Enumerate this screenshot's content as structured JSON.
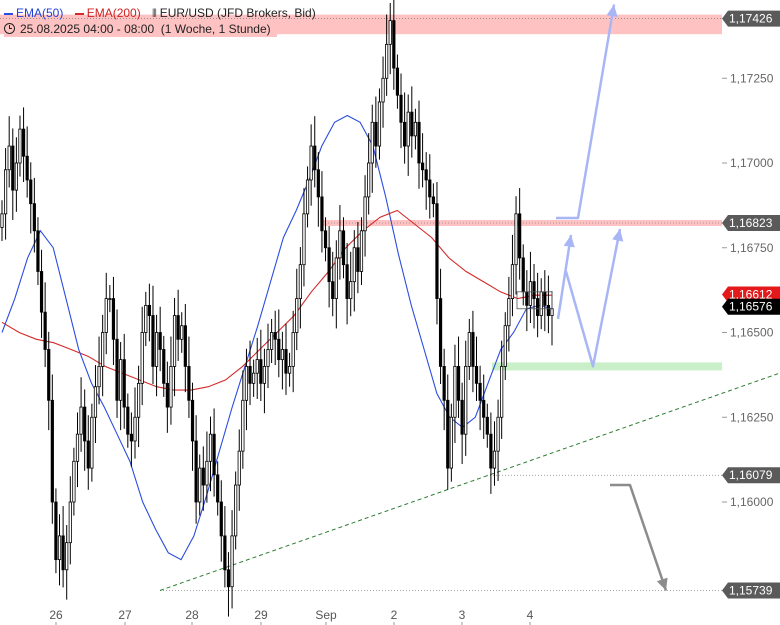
{
  "legend": {
    "ema50_label": "EMA(50)",
    "ema200_label": "EMA(200)",
    "instrument": "EUR/USD (JFD Brokers, Bid)",
    "period": "25.08.2025 04:00 - 08:00",
    "interval": "(1 Woche, 1 Stunde)"
  },
  "colors": {
    "ema50": "#2b4de0",
    "ema200": "#d42a2a",
    "candle": "#000000",
    "resistance_zone": "#ffc2c2",
    "support_zone": "#c9efc9",
    "trendline": "#2e7d32",
    "forecast_up": "#a9b6f5",
    "forecast_down": "#8c8c8c",
    "ema200_price_bg": "#e3191b",
    "last_price_bg": "#000000",
    "price_label_bg": "#5a5a5a"
  },
  "chart_data": {
    "type": "candlestick",
    "x_labels": [
      "26",
      "27",
      "28",
      "29",
      "Sep",
      "2",
      "3",
      "4"
    ],
    "y_ticks": [
      "1,17250",
      "1,17000",
      "1,16750",
      "1,16500",
      "1,16250",
      "1,16000"
    ],
    "ylim": [
      1.1572,
      1.175
    ],
    "price_labels": {
      "top_resistance": "1,17426",
      "resistance": "1,16823",
      "ema200_value": "1,16612",
      "last_price": "1,16576",
      "support": "1,16079",
      "bottom": "1,15739"
    },
    "levels": {
      "resistance_zone": 1.17426,
      "resistance_line": 1.16823,
      "support_zone": 1.164,
      "support_line": 1.16079,
      "low_line": 1.15739
    },
    "candles_close": [
      1.1685,
      1.1698,
      1.1705,
      1.1692,
      1.17,
      1.171,
      1.1702,
      1.1695,
      1.1688,
      1.168,
      1.1668,
      1.1656,
      1.1645,
      1.163,
      1.16,
      1.1583,
      1.159,
      1.158,
      1.1588,
      1.16,
      1.1612,
      1.162,
      1.1628,
      1.1618,
      1.161,
      1.1625,
      1.1634,
      1.164,
      1.165,
      1.166,
      1.166,
      1.1648,
      1.163,
      1.1642,
      1.1628,
      1.162,
      1.1618,
      1.1625,
      1.1635,
      1.165,
      1.1658,
      1.1655,
      1.164,
      1.165,
      1.1645,
      1.1635,
      1.1628,
      1.164,
      1.1655,
      1.1648,
      1.1652,
      1.164,
      1.163,
      1.1618,
      1.16,
      1.161,
      1.1605,
      1.1612,
      1.162,
      1.1608,
      1.16,
      1.159,
      1.158,
      1.1575,
      1.159,
      1.1605,
      1.1615,
      1.163,
      1.164,
      1.1635,
      1.1638,
      1.1642,
      1.1635,
      1.164,
      1.1645,
      1.165,
      1.1648,
      1.1642,
      1.1645,
      1.1638,
      1.164,
      1.165,
      1.166,
      1.167,
      1.1685,
      1.1695,
      1.1705,
      1.1698,
      1.169,
      1.168,
      1.1675,
      1.1665,
      1.166,
      1.1672,
      1.168,
      1.167,
      1.166,
      1.1665,
      1.1675,
      1.1668,
      1.168,
      1.169,
      1.17,
      1.1712,
      1.1705,
      1.1718,
      1.1725,
      1.1735,
      1.1742,
      1.1728,
      1.172,
      1.1712,
      1.1705,
      1.1715,
      1.1708,
      1.1712,
      1.17,
      1.1698,
      1.1695,
      1.169,
      1.1688,
      1.166,
      1.164,
      1.163,
      1.161,
      1.1625,
      1.164,
      1.163,
      1.162,
      1.164,
      1.165,
      1.164,
      1.1635,
      1.163,
      1.1625,
      1.162,
      1.161,
      1.1615,
      1.1625,
      1.164,
      1.1652,
      1.166,
      1.167,
      1.1685,
      1.1672,
      1.1662,
      1.1658,
      1.1665,
      1.166,
      1.1655,
      1.1662,
      1.1658,
      1.1655,
      1.1657
    ],
    "ema50": [
      1.165,
      1.166,
      1.1672,
      1.168,
      1.1675,
      1.166,
      1.1645,
      1.1635,
      1.1628,
      1.162,
      1.1612,
      1.16,
      1.1592,
      1.1585,
      1.1583,
      1.159,
      1.1602,
      1.1615,
      1.1628,
      1.164,
      1.1652,
      1.1665,
      1.1678,
      1.1686,
      1.1695,
      1.1705,
      1.1712,
      1.1714,
      1.1712,
      1.1705,
      1.169,
      1.1673,
      1.1658,
      1.1645,
      1.1632,
      1.1625,
      1.1622,
      1.1625,
      1.1635,
      1.1645,
      1.165,
      1.1657,
      1.1658,
      1.1657
    ],
    "ema200": [
      1.1653,
      1.165,
      1.1648,
      1.1647,
      1.1645,
      1.1643,
      1.164,
      1.1638,
      1.1636,
      1.1634,
      1.1633,
      1.1633,
      1.1634,
      1.1636,
      1.164,
      1.1645,
      1.165,
      1.1655,
      1.1662,
      1.1668,
      1.1675,
      1.168,
      1.1684,
      1.1686,
      1.1682,
      1.1678,
      1.1672,
      1.1668,
      1.1665,
      1.1662,
      1.166,
      1.1661,
      1.1661
    ]
  }
}
